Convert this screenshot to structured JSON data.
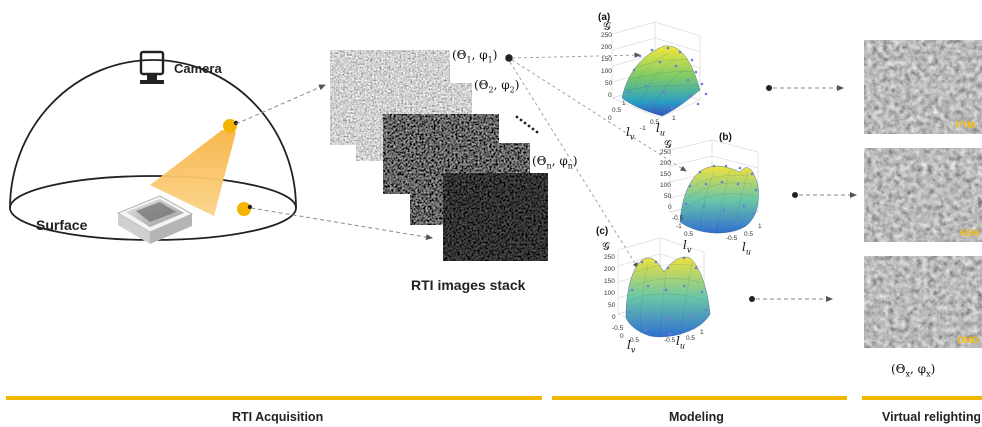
{
  "labels": {
    "camera": "Camera",
    "surface": "Surface",
    "stack": "RTI images stack",
    "light_x": "(Θ",
    "light_x_sub": "x",
    "light_x_mid": ", φ",
    "light_x_end": ")"
  },
  "light_positions": [
    {
      "a": "(Θ",
      "s1": "1",
      "m": ", φ",
      "s2": "1",
      "e": ")"
    },
    {
      "a": "(Θ",
      "s1": "2",
      "m": ", φ",
      "s2": "2",
      "e": ")"
    },
    {
      "a": "(Θ",
      "s1": "n",
      "m": ", φ",
      "s2": "n",
      "e": ")"
    }
  ],
  "model_panels": [
    {
      "tag": "(a)",
      "zlabel": "𝒢",
      "ticks": [
        "250",
        "200",
        "150",
        "100",
        "50",
        "0"
      ],
      "xlabel": "l",
      "xsub": "u",
      "ylabel": "l",
      "ysub": "v",
      "xticks": [
        "-1",
        "-0.5",
        "0",
        "0.5",
        "1"
      ],
      "yticks": [
        "1",
        "0.5",
        "0",
        "-0.5",
        "-1"
      ]
    },
    {
      "tag": "(b)",
      "zlabel": "𝒢",
      "ticks": [
        "250",
        "200",
        "150",
        "100",
        "50",
        "0"
      ],
      "xlabel": "l",
      "xsub": "u",
      "ylabel": "l",
      "ysub": "v",
      "xticks": [
        "-1",
        "-0.5",
        "0",
        "0.5",
        "1"
      ],
      "yticks": [
        "1",
        "0.5",
        "0",
        "-0.5",
        "-1"
      ]
    },
    {
      "tag": "(c)",
      "zlabel": "𝒢",
      "ticks": [
        "250",
        "200",
        "150",
        "100",
        "50",
        "0"
      ],
      "xlabel": "l",
      "xsub": "u",
      "ylabel": "l",
      "ysub": "v",
      "xticks": [
        "-1",
        "-0.5",
        "0",
        "0.5",
        "1"
      ],
      "yticks": [
        "1",
        "0.5",
        "0",
        "-0.5",
        "-1"
      ]
    }
  ],
  "relit_tags": [
    "PTM",
    "HSH",
    "DMD"
  ],
  "sections": [
    "RTI Acquisition",
    "Modeling",
    "Virtual relighting"
  ],
  "colors": {
    "accent": "#f2b800",
    "light_source": "#f5b400",
    "cone": "#f9c46a"
  }
}
